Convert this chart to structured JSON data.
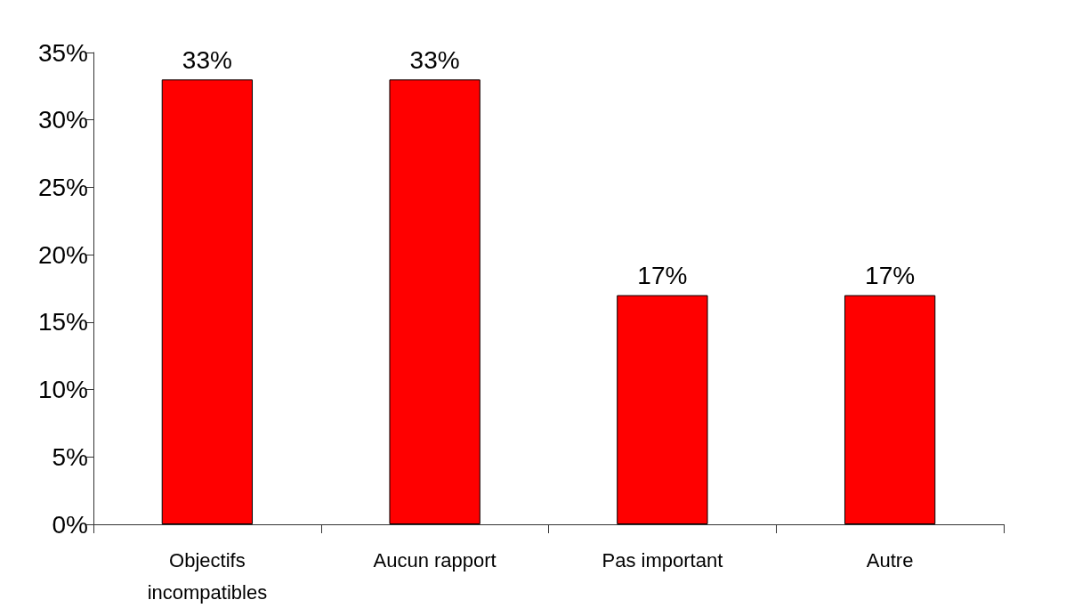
{
  "chart_data": {
    "type": "bar",
    "categories": [
      "Objectifs\nincompatibles",
      "Aucun rapport",
      "Pas important",
      "Autre"
    ],
    "values": [
      33,
      33,
      17,
      17
    ],
    "color": "#ff0000",
    "value_labels": [
      "33%",
      "33%",
      "17%",
      "17%"
    ],
    "ylim": [
      0,
      35
    ],
    "yticks": [
      {
        "value": 0,
        "label": "0%"
      },
      {
        "value": 5,
        "label": "5%"
      },
      {
        "value": 10,
        "label": "10%"
      },
      {
        "value": 15,
        "label": "15%"
      },
      {
        "value": 20,
        "label": "20%"
      },
      {
        "value": 25,
        "label": "25%"
      },
      {
        "value": 30,
        "label": "30%"
      },
      {
        "value": 35,
        "label": "35%"
      }
    ],
    "grid": false
  }
}
